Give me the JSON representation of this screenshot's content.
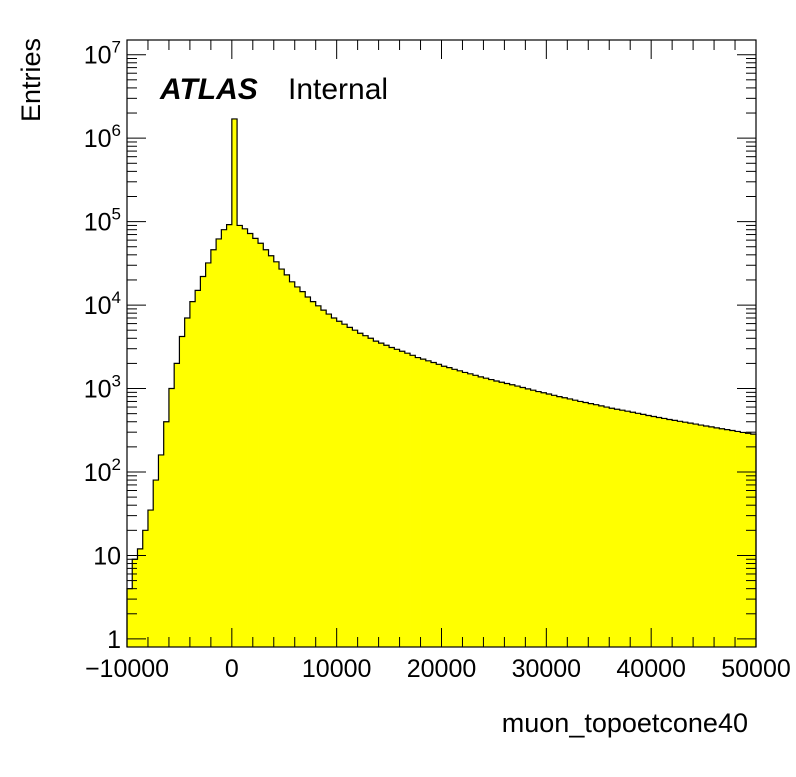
{
  "chart_data": {
    "type": "histogram",
    "xlabel": "muon_topoetcone40",
    "ylabel": "Entries",
    "atlas_label": "ATLAS",
    "atlas_sublabel": "Internal",
    "xlim": [
      -10000,
      50000
    ],
    "ylim": [
      0.8,
      15000000
    ],
    "yscale": "log",
    "grid": false,
    "legend": "none",
    "fill_color": "#ffff00",
    "line_color": "#000000",
    "bin_width": 500,
    "x_ticks": [
      "−10000",
      "0",
      "10000",
      "20000",
      "30000",
      "40000",
      "50000"
    ],
    "y_ticks": [
      {
        "base": "1",
        "exp": ""
      },
      {
        "base": "10",
        "exp": ""
      },
      {
        "base": "10",
        "exp": "2"
      },
      {
        "base": "10",
        "exp": "3"
      },
      {
        "base": "10",
        "exp": "4"
      },
      {
        "base": "10",
        "exp": "5"
      },
      {
        "base": "10",
        "exp": "6"
      },
      {
        "base": "10",
        "exp": "7"
      }
    ],
    "values": [
      4,
      9,
      12,
      20,
      35,
      80,
      160,
      400,
      1000,
      2000,
      4200,
      7000,
      11000,
      15000,
      22000,
      32000,
      46000,
      62000,
      80000,
      92000,
      1700000,
      90000,
      82000,
      72000,
      63000,
      55000,
      46000,
      39000,
      33000,
      27000,
      23000,
      19000,
      16500,
      14500,
      12500,
      11000,
      9800,
      8700,
      7800,
      7000,
      6400,
      5900,
      5400,
      5000,
      4600,
      4300,
      4000,
      3700,
      3500,
      3300,
      3100,
      2950,
      2800,
      2650,
      2500,
      2350,
      2250,
      2150,
      2050,
      1950,
      1850,
      1780,
      1700,
      1630,
      1560,
      1500,
      1440,
      1380,
      1330,
      1280,
      1230,
      1190,
      1150,
      1110,
      1070,
      1030,
      990,
      955,
      920,
      890,
      860,
      830,
      800,
      775,
      750,
      725,
      700,
      680,
      660,
      640,
      620,
      600,
      580,
      565,
      550,
      535,
      520,
      505,
      490,
      475,
      462,
      450,
      438,
      426,
      415,
      405,
      395,
      385,
      375,
      365,
      356,
      347,
      338,
      330,
      322,
      314,
      306,
      298,
      291,
      284
    ]
  }
}
